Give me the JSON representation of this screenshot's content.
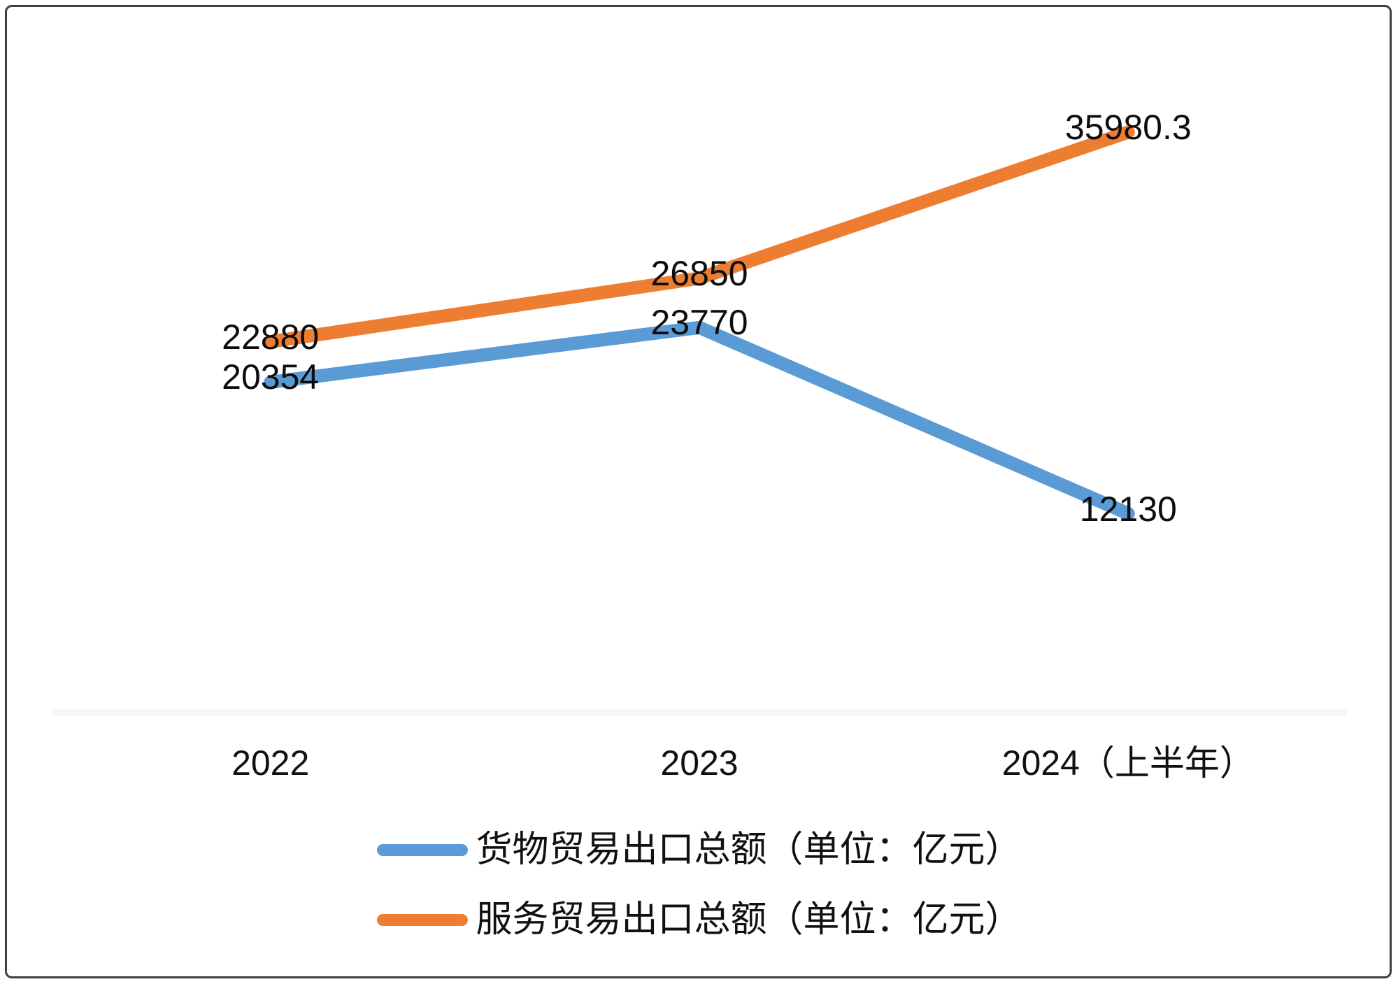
{
  "chart_data": {
    "type": "line",
    "categories": [
      "2022",
      "2023",
      "2024（上半年）"
    ],
    "series": [
      {
        "name": "货物贸易出口总额（单位：亿元）",
        "color": "#5B9BD5",
        "values": [
          20354,
          23770,
          12130
        ]
      },
      {
        "name": "服务贸易出口总额（单位：亿元）",
        "color": "#ED7D31",
        "values": [
          22880,
          26850,
          35980.3
        ]
      }
    ],
    "title": "",
    "xlabel": "",
    "ylabel": "",
    "ylim": [
      0,
      40000
    ],
    "grid": false,
    "legend_position": "bottom",
    "data_label_position": "center",
    "data_label_color": "#0d0d0d",
    "axis_line_color": "#f5f5f5",
    "background": "#ffffff",
    "frame_border_color": "#3f3f3f"
  }
}
